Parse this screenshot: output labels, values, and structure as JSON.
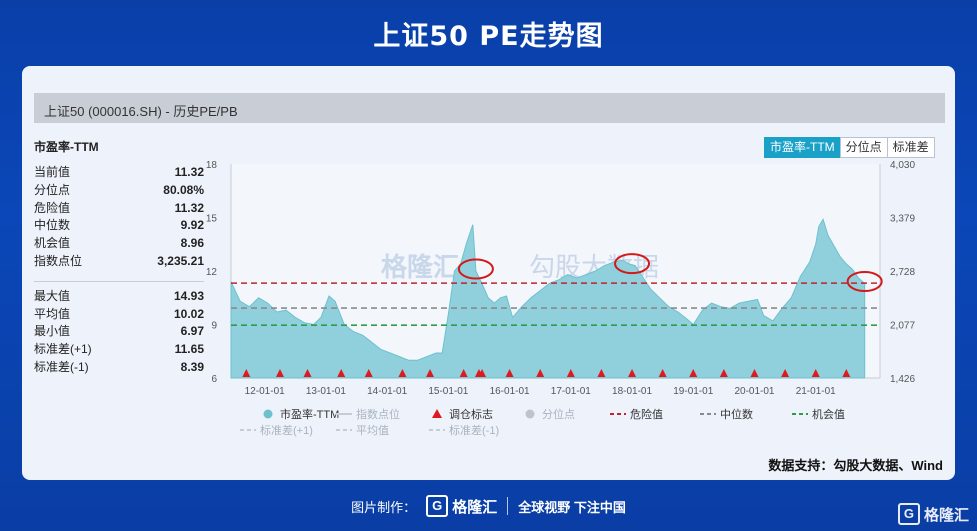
{
  "page_title": "上证50 PE走势图",
  "panel_title": "上证50 (000016.SH) - 历史PE/PB",
  "stats_title": "市盈率-TTM",
  "stats_top": [
    {
      "label": "当前值",
      "value": "11.32"
    },
    {
      "label": "分位点",
      "value": "80.08%"
    },
    {
      "label": "危险值",
      "value": "11.32"
    },
    {
      "label": "中位数",
      "value": "9.92"
    },
    {
      "label": "机会值",
      "value": "8.96"
    },
    {
      "label": "指数点位",
      "value": "3,235.21"
    }
  ],
  "stats_bottom": [
    {
      "label": "最大值",
      "value": "14.93"
    },
    {
      "label": "平均值",
      "value": "10.02"
    },
    {
      "label": "最小值",
      "value": "6.97"
    },
    {
      "label": "标准差(+1)",
      "value": "11.65"
    },
    {
      "label": "标准差(-1)",
      "value": "8.39"
    }
  ],
  "tabs": [
    "市盈率-TTM",
    "分位点",
    "标准差"
  ],
  "source": "数据支持：勾股大数据、Wind",
  "watermark_main": "格隆汇",
  "watermark_second": "勾股大数据",
  "footer": {
    "label": "图片制作：",
    "logo": "格隆汇",
    "slogan": "全球视野 下注中国"
  },
  "corner_logo": "格隆汇",
  "colors": {
    "area_fill": "#8fd0dc",
    "area_stroke": "#6ec0cf",
    "danger": "#c0242c",
    "median": "#8a8a8a",
    "opportunity": "#2e9b4e",
    "marker": "#e0191e",
    "circle": "#d21a1a"
  },
  "chart_data": {
    "type": "area",
    "x_ticks": [
      "12-01-01",
      "13-01-01",
      "14-01-01",
      "15-01-01",
      "16-01-01",
      "17-01-01",
      "18-01-01",
      "19-01-01",
      "20-01-01",
      "21-01-01"
    ],
    "x_range": [
      2011.45,
      2022.05
    ],
    "ylim_left": [
      6,
      18
    ],
    "yticks_left": [
      6,
      9,
      12,
      15,
      18
    ],
    "ylim_right": [
      1426,
      4030
    ],
    "yticks_right": [
      "1,426",
      "2,077",
      "2,728",
      "3,379",
      "4,030"
    ],
    "series": [
      {
        "name": "市盈率-TTM",
        "x": [
          2011.45,
          2011.6,
          2011.75,
          2011.9,
          2012.05,
          2012.2,
          2012.35,
          2012.5,
          2012.65,
          2012.8,
          2012.92,
          2013.05,
          2013.15,
          2013.3,
          2013.45,
          2013.6,
          2013.75,
          2013.9,
          2014.05,
          2014.2,
          2014.35,
          2014.5,
          2014.65,
          2014.8,
          2014.9,
          2015.0,
          2015.1,
          2015.2,
          2015.3,
          2015.4,
          2015.45,
          2015.55,
          2015.65,
          2015.75,
          2015.85,
          2015.95,
          2016.05,
          2016.2,
          2016.35,
          2016.5,
          2016.65,
          2016.8,
          2016.95,
          2017.1,
          2017.25,
          2017.4,
          2017.55,
          2017.7,
          2017.85,
          2017.95,
          2018.05,
          2018.15,
          2018.3,
          2018.45,
          2018.6,
          2018.75,
          2018.9,
          2019.0,
          2019.15,
          2019.3,
          2019.45,
          2019.6,
          2019.75,
          2019.9,
          2020.05,
          2020.15,
          2020.3,
          2020.45,
          2020.6,
          2020.75,
          2020.9,
          2021.0,
          2021.05,
          2021.12,
          2021.2,
          2021.3,
          2021.4,
          2021.5,
          2021.6,
          2021.7,
          2021.8
        ],
        "values": [
          11.4,
          10.3,
          10.0,
          10.5,
          10.2,
          9.7,
          9.8,
          9.4,
          9.1,
          9.0,
          9.4,
          10.6,
          10.3,
          9.0,
          8.6,
          8.4,
          8.0,
          7.6,
          7.4,
          7.2,
          7.0,
          7.0,
          7.2,
          7.4,
          7.4,
          9.6,
          12.0,
          12.4,
          13.6,
          14.6,
          12.0,
          11.3,
          10.5,
          10.2,
          10.5,
          10.6,
          9.4,
          10.0,
          10.5,
          10.9,
          11.3,
          11.5,
          11.8,
          11.6,
          11.8,
          12.0,
          12.3,
          12.5,
          12.6,
          12.4,
          12.3,
          11.8,
          11.0,
          10.5,
          10.0,
          9.7,
          9.3,
          9.0,
          9.8,
          10.2,
          10.0,
          9.9,
          10.2,
          10.3,
          10.4,
          9.5,
          9.2,
          9.9,
          10.5,
          11.7,
          12.5,
          13.5,
          14.5,
          14.9,
          14.0,
          13.4,
          12.8,
          12.4,
          12.1,
          11.6,
          11.3
        ]
      }
    ],
    "reference_lines": [
      {
        "name": "危险值",
        "value": 11.32
      },
      {
        "name": "中位数",
        "value": 9.92
      },
      {
        "name": "机会值",
        "value": 8.96
      }
    ],
    "rebalance_markers_x": [
      2011.7,
      2012.25,
      2012.7,
      2013.25,
      2013.7,
      2014.25,
      2014.7,
      2015.25,
      2015.5,
      2015.55,
      2016.0,
      2016.5,
      2017.0,
      2017.5,
      2018.0,
      2018.5,
      2019.0,
      2019.5,
      2020.0,
      2020.5,
      2021.0,
      2021.5
    ],
    "highlight_circles_x": [
      2015.45,
      2018.0,
      2021.8
    ],
    "legend": [
      "市盈率-TTM",
      "指数点位",
      "调仓标志",
      "分位点",
      "危险值",
      "中位数",
      "机会值",
      "标准差(+1)",
      "平均值",
      "标准差(-1)"
    ],
    "legend_placement": "bottom"
  }
}
